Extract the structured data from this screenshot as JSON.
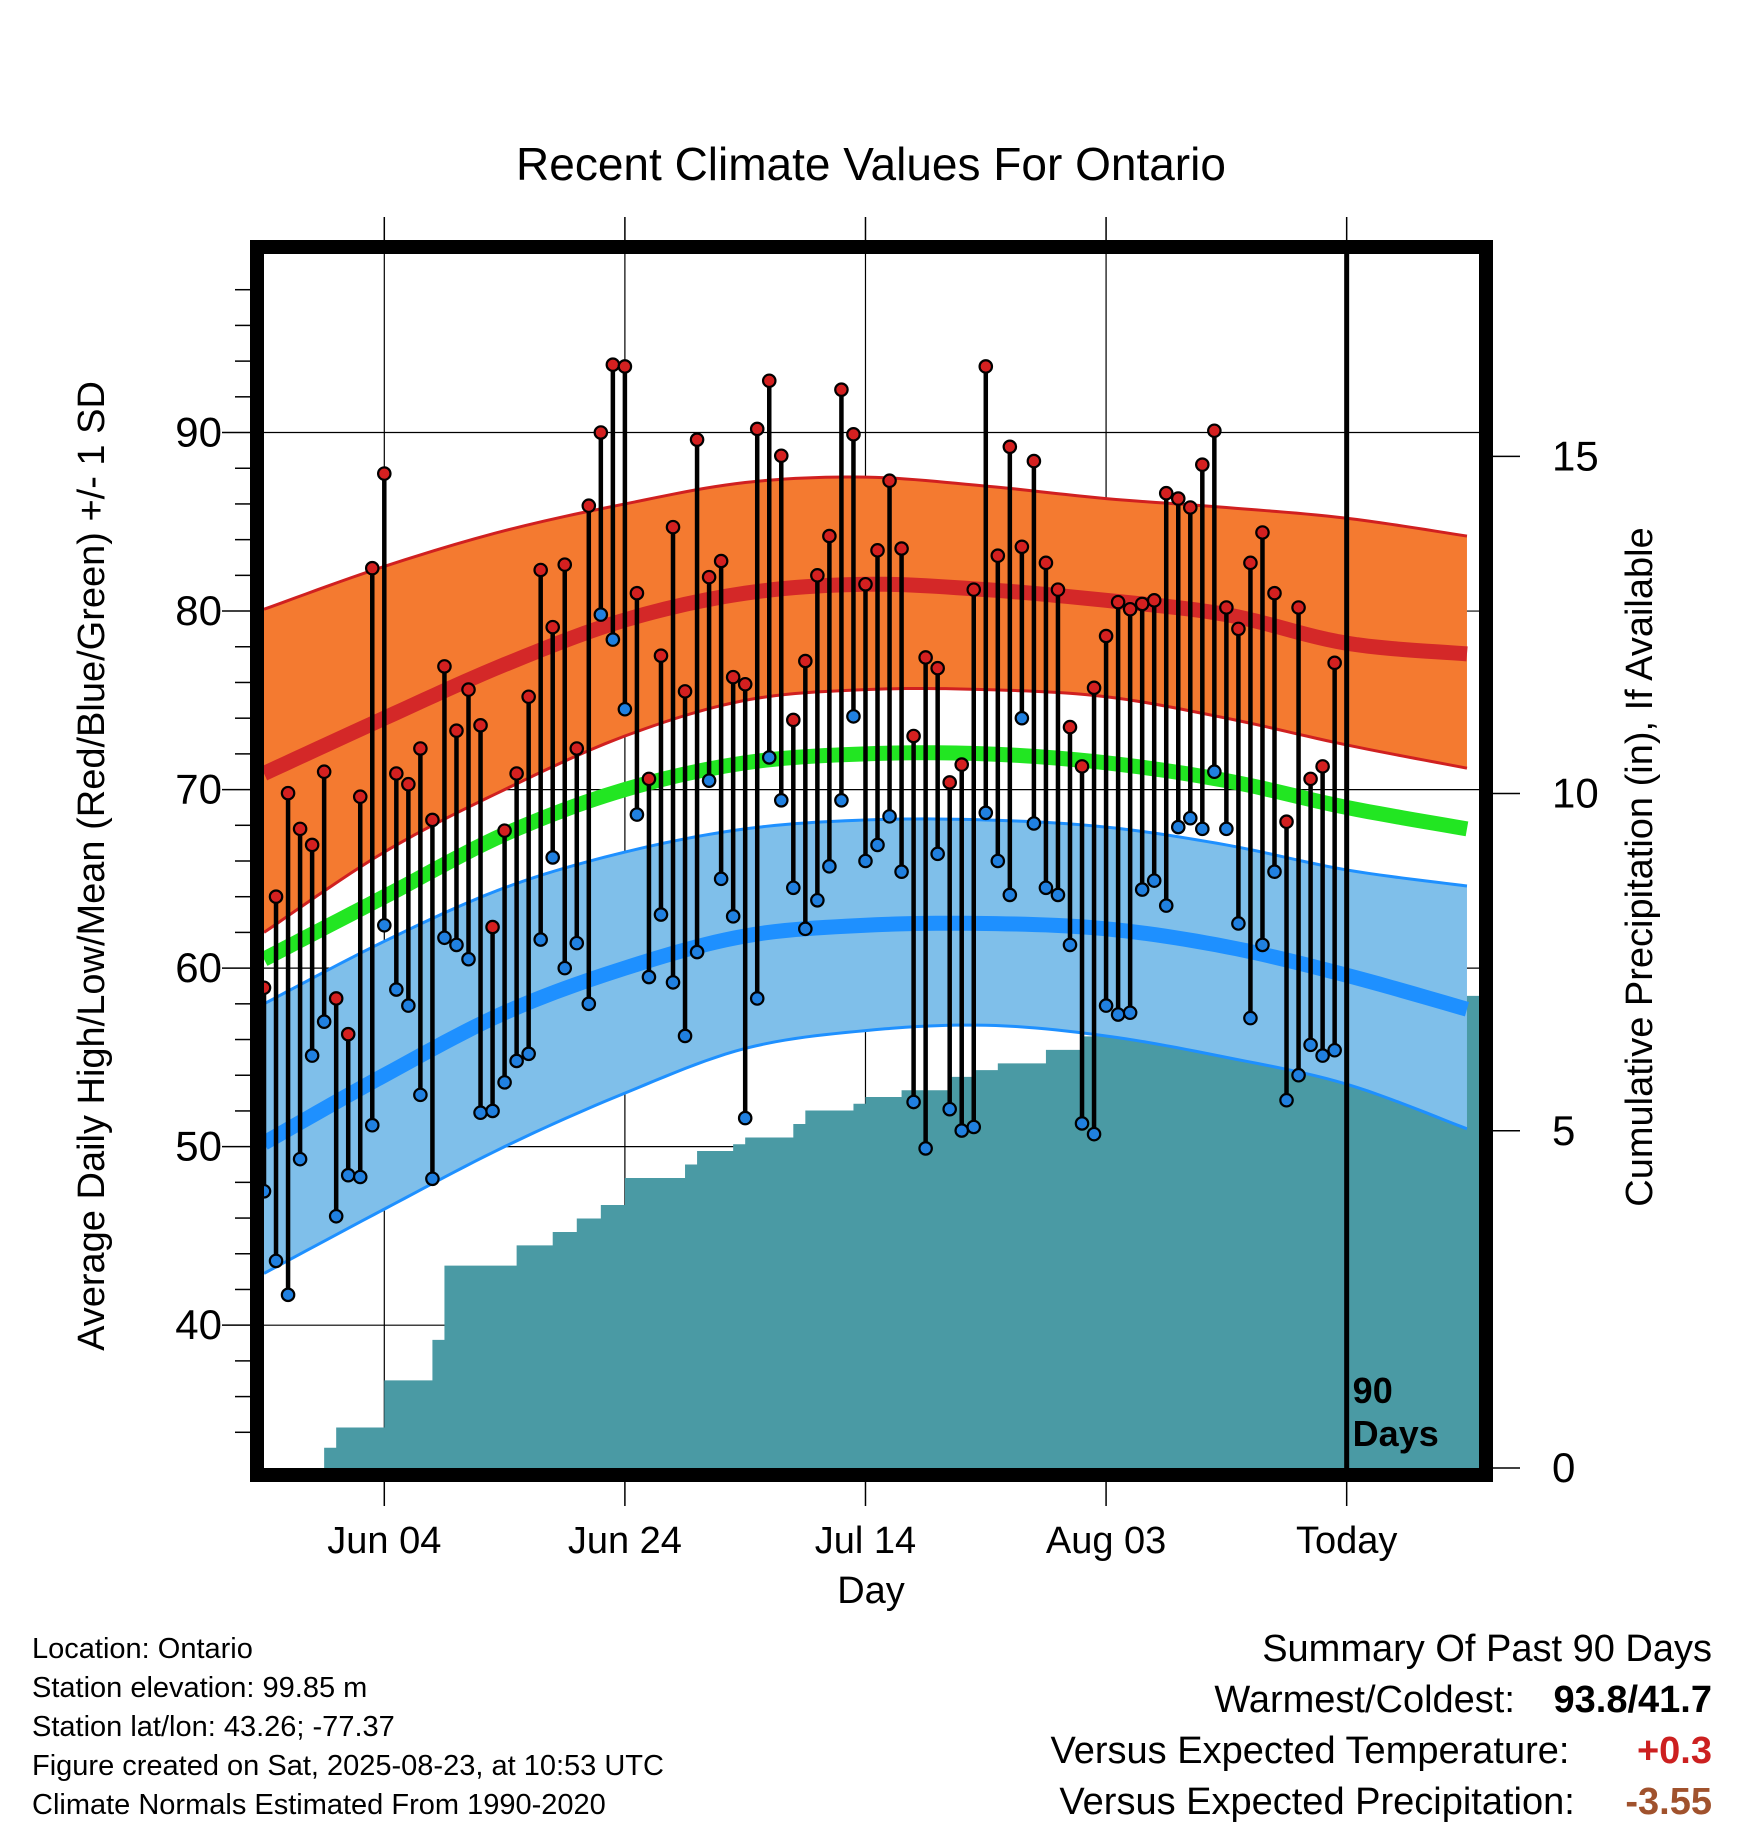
{
  "chart_data": {
    "type": "line",
    "title": "Recent Climate Values For Ontario",
    "xlabel": "Day",
    "ylabel": "Average Daily High/Low/Mean (Red/Blue/Green) +/- 1 SD",
    "y2label": "Cumulative Precipitation (in), If Available",
    "ylim": [
      32,
      100
    ],
    "y2lim": [
      0,
      18
    ],
    "xlim": [
      -10,
      91
    ],
    "x_tick_days": [
      0,
      20,
      40,
      60,
      80
    ],
    "x_tick_labels": [
      "Jun 04",
      "Jun 24",
      "Jul 14",
      "Aug 03",
      "Today"
    ],
    "y_ticks": [
      40,
      50,
      60,
      70,
      80,
      90
    ],
    "y2_ticks": [
      0,
      5,
      10,
      15
    ],
    "grid": true,
    "today_marker": {
      "day": 80,
      "label_line1": "90",
      "label_line2": "Days"
    },
    "colors": {
      "high_band": "#f47a30",
      "high_band_edge": "#d02020",
      "high_mean": "#d42828",
      "low_band": "#7fbfea",
      "low_band_edge": "#1e90ff",
      "low_mean": "#1e90ff",
      "mean_line": "#22e622",
      "precip_fill": "#4a9aa4",
      "high_dot": "#d42020",
      "low_dot": "#2080e0"
    },
    "normals": {
      "days": [
        -10,
        0,
        10,
        20,
        30,
        40,
        50,
        60,
        70,
        80,
        90
      ],
      "high_mean": [
        70.9,
        74.0,
        77.0,
        79.5,
        81.0,
        81.5,
        81.2,
        80.6,
        79.8,
        78.2,
        77.6
      ],
      "high_upper": [
        80.1,
        82.5,
        84.5,
        86.0,
        87.2,
        87.5,
        87.0,
        86.3,
        85.8,
        85.2,
        84.2
      ],
      "high_lower": [
        62.0,
        66.5,
        70.0,
        73.0,
        75.0,
        75.6,
        75.6,
        75.2,
        74.0,
        72.5,
        71.2
      ],
      "mean_line": [
        60.5,
        64.0,
        67.5,
        70.0,
        71.5,
        72.0,
        72.0,
        71.5,
        70.5,
        69.0,
        67.8
      ],
      "low_mean": [
        50.2,
        54.0,
        57.5,
        60.0,
        61.8,
        62.4,
        62.5,
        62.2,
        61.2,
        59.6,
        57.7
      ],
      "low_upper": [
        58.0,
        61.5,
        64.5,
        66.5,
        67.8,
        68.3,
        68.3,
        67.9,
        66.9,
        65.5,
        64.6
      ],
      "low_lower": [
        42.9,
        46.5,
        50.0,
        53.0,
        55.5,
        56.5,
        56.8,
        56.2,
        55.0,
        53.5,
        51.0
      ]
    },
    "series": [
      {
        "name": "High",
        "values": [
          58.9,
          64.0,
          69.8,
          67.8,
          66.9,
          71.0,
          58.3,
          56.3,
          69.6,
          82.4,
          87.7,
          70.9,
          70.3,
          72.3,
          68.3,
          76.9,
          73.3,
          75.6,
          73.6,
          62.3,
          67.7,
          70.9,
          75.2,
          82.3,
          79.1,
          82.6,
          72.3,
          85.9,
          90.0,
          93.8,
          93.7,
          81.0,
          70.6,
          77.5,
          84.7,
          75.5,
          89.6,
          81.9,
          82.8,
          76.3,
          75.9,
          90.2,
          92.9,
          88.7,
          73.9,
          77.2,
          82.0,
          84.2,
          92.4,
          89.9,
          81.5,
          83.4,
          87.3,
          83.5,
          73.0,
          77.4,
          76.8,
          70.4,
          71.4,
          81.2,
          93.7,
          83.1,
          89.2,
          83.6,
          88.4,
          82.7,
          81.2,
          73.5,
          71.3,
          75.7,
          78.6,
          80.5,
          80.1,
          80.4,
          80.6,
          86.6,
          86.3,
          85.8,
          88.2,
          90.1,
          80.2,
          79.0,
          82.7,
          84.4,
          81.0,
          68.2,
          80.2,
          70.6,
          71.3,
          77.1
        ]
      },
      {
        "name": "Low",
        "values": [
          47.5,
          43.6,
          41.7,
          49.3,
          55.1,
          57.0,
          46.1,
          48.4,
          48.3,
          51.2,
          62.4,
          58.8,
          57.9,
          52.9,
          48.2,
          61.7,
          61.3,
          60.5,
          51.9,
          52.0,
          53.6,
          54.8,
          55.2,
          61.6,
          66.2,
          60.0,
          61.4,
          58.0,
          79.8,
          78.4,
          74.5,
          68.6,
          59.5,
          63.0,
          59.2,
          56.2,
          60.9,
          70.5,
          65.0,
          62.9,
          51.6,
          58.3,
          71.8,
          69.4,
          64.5,
          62.2,
          63.8,
          65.7,
          69.4,
          74.1,
          66.0,
          66.9,
          68.5,
          65.4,
          52.5,
          49.9,
          66.4,
          52.1,
          50.9,
          51.1,
          68.7,
          66.0,
          64.1,
          74.0,
          68.1,
          64.5,
          64.1,
          61.3,
          51.3,
          50.7,
          57.9,
          57.4,
          57.5,
          64.4,
          64.9,
          63.5,
          67.9,
          68.4,
          67.8,
          71.0,
          67.8,
          62.5,
          57.2,
          61.3,
          65.4,
          52.6,
          54.0,
          55.7,
          55.1,
          55.4
        ]
      },
      {
        "name": "Precipitation",
        "days": [
          -10,
          -7,
          -5,
          -4,
          -3,
          0,
          1,
          2,
          3,
          4,
          5,
          7,
          8,
          9,
          11,
          12,
          14,
          15,
          16,
          17,
          18,
          19,
          20,
          21,
          22,
          24,
          25,
          26,
          27,
          28,
          29,
          30,
          31,
          32,
          33,
          34,
          35,
          36,
          37,
          38,
          39,
          40,
          41,
          42,
          43,
          44,
          45,
          46,
          47,
          48,
          49,
          50,
          51,
          52,
          53,
          54,
          55,
          56,
          57,
          58,
          59,
          60,
          62,
          63,
          64,
          65,
          66,
          67,
          68,
          69,
          70,
          71,
          72,
          73,
          74,
          75,
          76,
          77,
          78,
          79,
          80,
          81,
          82,
          84,
          85,
          86,
          87,
          88,
          89,
          90,
          91
        ],
        "values": [
          0,
          0,
          0.3,
          0.6,
          0.6,
          1.3,
          1.3,
          1.3,
          1.3,
          1.9,
          3.0,
          3.0,
          3.0,
          3.0,
          3.3,
          3.3,
          3.5,
          3.5,
          3.7,
          3.7,
          3.9,
          3.9,
          4.3,
          4.3,
          4.3,
          4.3,
          4.5,
          4.7,
          4.7,
          4.7,
          4.8,
          4.9,
          4.9,
          4.9,
          4.9,
          5.1,
          5.3,
          5.3,
          5.3,
          5.3,
          5.4,
          5.5,
          5.5,
          5.5,
          5.6,
          5.6,
          5.6,
          5.6,
          5.8,
          5.8,
          5.9,
          5.9,
          6.0,
          6.0,
          6.0,
          6.0,
          6.2,
          6.2,
          6.2,
          6.4,
          6.5,
          6.5,
          6.9,
          6.9,
          7.0,
          7.0,
          7.0,
          7.0,
          7.0,
          7.0,
          7.0,
          7.0,
          7.0,
          7.0,
          7.0,
          7.0,
          7.0,
          7.0,
          7.0,
          7.0,
          7.0,
          7.0,
          7.0,
          7.0,
          7.0,
          7.0,
          7.0,
          7.0,
          7.0,
          7.0,
          7.0
        ]
      }
    ]
  },
  "info": {
    "location": "Location: Ontario",
    "elevation": "Station elevation: 99.85 m",
    "latlon": "Station lat/lon: 43.26; -77.37",
    "created": "Figure created on Sat, 2025-08-23, at 10:53 UTC",
    "normals": "Climate Normals Estimated From 1990-2020"
  },
  "summary": {
    "heading": "Summary Of Past 90 Days",
    "warm_cold_label": "Warmest/Coldest:",
    "warmest": "93.8",
    "sep": "/",
    "coldest": "41.7",
    "temp_label": "Versus Expected Temperature:",
    "temp_value": "+0.3",
    "temp_color": "#cc2020",
    "precip_label": "Versus Expected Precipitation:",
    "precip_value": "-3.55",
    "precip_color": "#a0522d"
  }
}
